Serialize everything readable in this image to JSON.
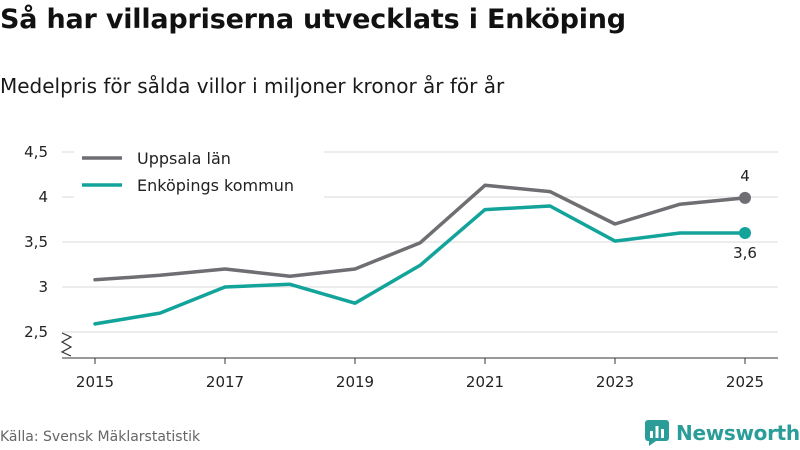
{
  "title": "Så har villapriserna utvecklats i Enköping",
  "subtitle": "Medelpris för sålda villor i miljoner kronor år för år",
  "source": "Källa: Svensk Mäklarstatistik",
  "brand": "Newsworthy",
  "colors": {
    "uppsala": "#6e6e73",
    "enkoping": "#12a49a",
    "grid": "#d9d9d9",
    "axis": "#333333",
    "brand": "#2a9d98"
  },
  "chart_data": {
    "type": "line",
    "x": [
      2015,
      2016,
      2017,
      2018,
      2019,
      2020,
      2021,
      2022,
      2023,
      2024,
      2025
    ],
    "x_ticks": [
      "2015",
      "2017",
      "2019",
      "2021",
      "2023",
      "2025"
    ],
    "y_ticks": [
      "2,5",
      "3",
      "3,5",
      "4",
      "4,5"
    ],
    "ylim": [
      2.5,
      4.5
    ],
    "axis_break": true,
    "legend_position": "top-left",
    "grid": true,
    "series": [
      {
        "name": "Uppsala län",
        "key": "uppsala",
        "values": [
          3.08,
          3.13,
          3.2,
          3.12,
          3.2,
          3.49,
          4.13,
          4.06,
          3.7,
          3.92,
          3.99
        ],
        "end_label": "4"
      },
      {
        "name": "Enköpings kommun",
        "key": "enkoping",
        "values": [
          2.59,
          2.71,
          3.0,
          3.03,
          2.82,
          3.24,
          3.86,
          3.9,
          3.51,
          3.6,
          3.6
        ],
        "end_label": "3,6"
      }
    ]
  }
}
